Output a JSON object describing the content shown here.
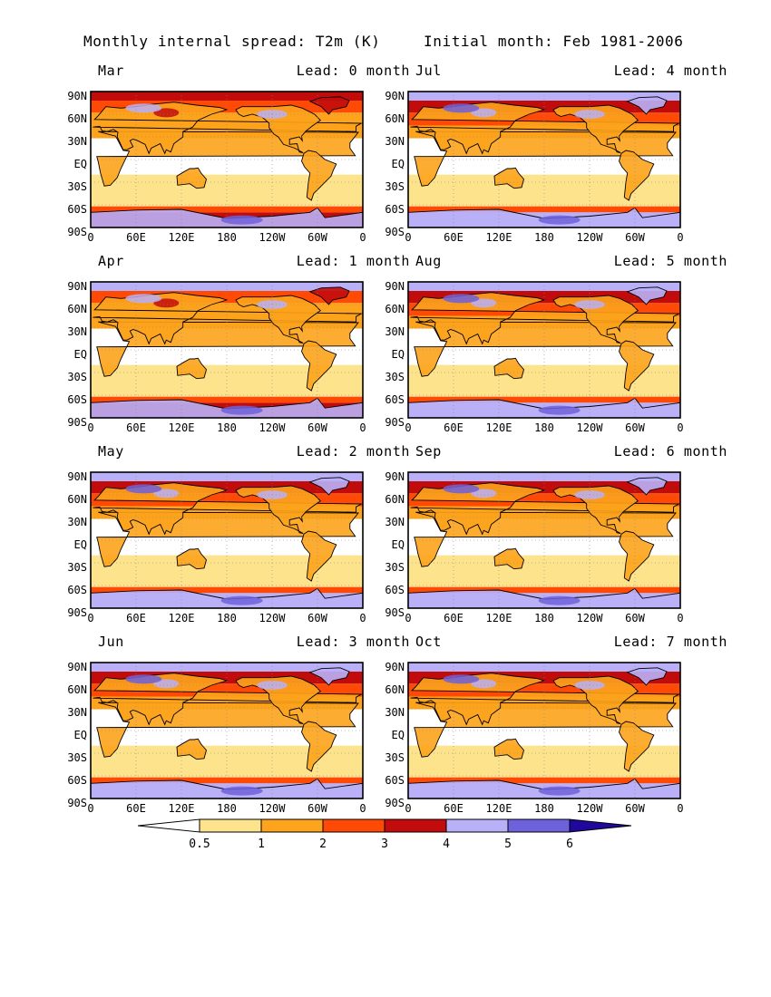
{
  "title": {
    "left": "Monthly internal spread: T2m (K)",
    "right": "Initial month: Feb 1981-2006"
  },
  "lat_labels": [
    "90N",
    "60N",
    "30N",
    "EQ",
    "30S",
    "60S",
    "90S"
  ],
  "lon_labels": [
    "0",
    "60E",
    "120E",
    "180",
    "120W",
    "60W",
    "0"
  ],
  "lon_labels_last": [
    "0",
    "60E",
    "120E",
    "180",
    "120W",
    "60W",
    "0"
  ],
  "panels": [
    {
      "id": "mar",
      "month": "Mar",
      "lead": "Lead: 0 month",
      "level": 1.15
    },
    {
      "id": "jul",
      "month": "Jul",
      "lead": "Lead: 4 month",
      "level": 1.3
    },
    {
      "id": "apr",
      "month": "Apr",
      "lead": "Lead: 1 month",
      "level": 1.2
    },
    {
      "id": "aug",
      "month": "Aug",
      "lead": "Lead: 5 month",
      "level": 1.3
    },
    {
      "id": "may",
      "month": "May",
      "lead": "Lead: 2 month",
      "level": 1.25
    },
    {
      "id": "sep",
      "month": "Sep",
      "lead": "Lead: 6 month",
      "level": 1.35
    },
    {
      "id": "jun",
      "month": "Jun",
      "lead": "Lead: 3 month",
      "level": 1.3
    },
    {
      "id": "oct",
      "month": "Oct",
      "lead": "Lead: 7 month",
      "level": 1.35
    }
  ],
  "colorbar": {
    "labels": [
      "0.5",
      "1",
      "2",
      "3",
      "4",
      "5",
      "6"
    ],
    "colors": [
      "#ffffff",
      "#fde38b",
      "#fda31c",
      "#ff4a06",
      "#c20c0c",
      "#b9b0f7",
      "#6e62dc",
      "#20089c"
    ]
  }
}
